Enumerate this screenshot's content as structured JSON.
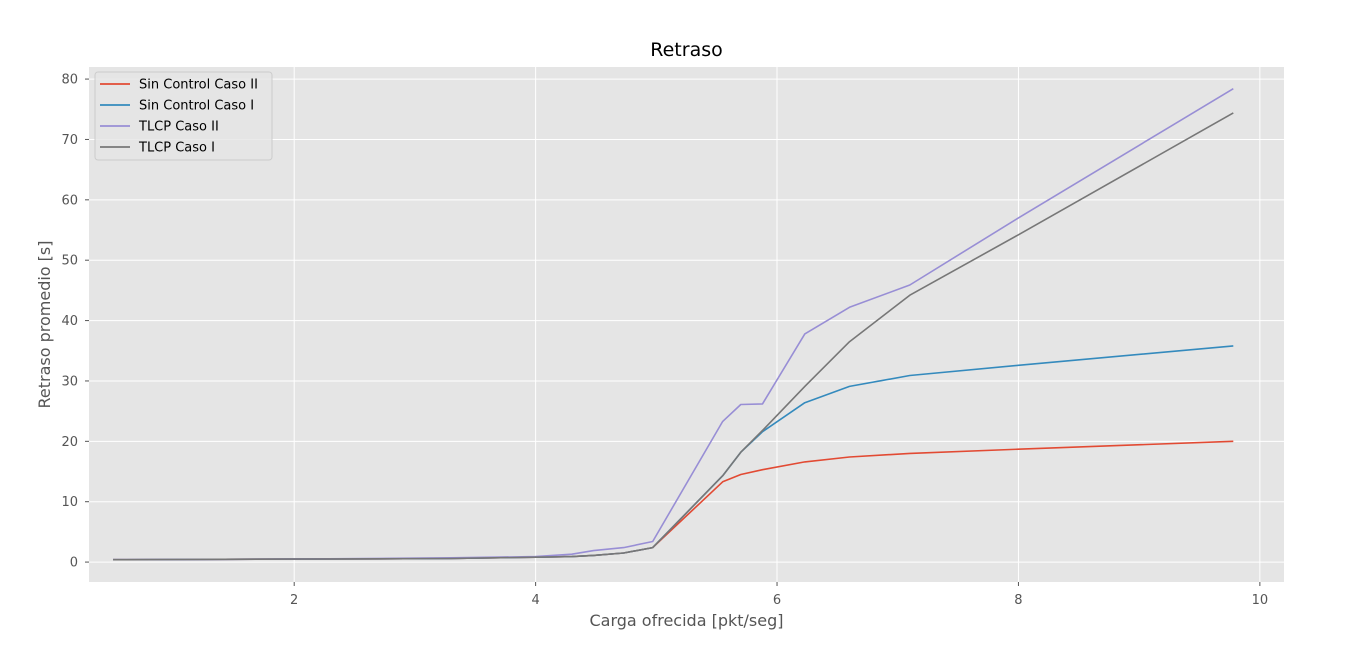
{
  "chart_data": {
    "type": "line",
    "title": "Retraso",
    "xlabel": "Carga ofrecida [pkt/seg]",
    "ylabel": "Retraso promedio [s]",
    "xlim": [
      0.3,
      10.2
    ],
    "ylim": [
      -3.3,
      82
    ],
    "xticks": [
      2,
      4,
      6,
      8,
      10
    ],
    "yticks": [
      0,
      10,
      20,
      30,
      40,
      50,
      60,
      70,
      80
    ],
    "grid": true,
    "legend_position": "top-left",
    "series": [
      {
        "name": "Sin Control Caso II",
        "color": "#E24A33",
        "x": [
          0.5,
          2.0,
          3.3,
          4.0,
          4.3,
          4.48,
          4.73,
          4.97,
          5.55,
          5.7,
          5.88,
          6.23,
          6.6,
          7.1,
          8.0,
          9.78
        ],
        "y": [
          0.4,
          0.5,
          0.6,
          0.8,
          0.9,
          1.1,
          1.5,
          2.4,
          13.3,
          14.5,
          15.3,
          16.6,
          17.4,
          18.0,
          18.7,
          20.0
        ]
      },
      {
        "name": "Sin Control Caso I",
        "color": "#348ABD",
        "x": [
          0.5,
          2.0,
          3.3,
          4.0,
          4.3,
          4.48,
          4.73,
          4.97,
          5.55,
          5.7,
          5.88,
          6.23,
          6.6,
          7.1,
          8.0,
          9.78
        ],
        "y": [
          0.4,
          0.5,
          0.6,
          0.8,
          0.9,
          1.1,
          1.5,
          2.4,
          14.3,
          18.2,
          21.6,
          26.4,
          29.1,
          30.9,
          32.6,
          35.8
        ]
      },
      {
        "name": "TLCP Caso II",
        "color": "#988ED5",
        "x": [
          0.5,
          2.0,
          3.3,
          4.0,
          4.3,
          4.48,
          4.73,
          4.97,
          5.55,
          5.7,
          5.88,
          6.23,
          6.6,
          7.1,
          8.0,
          9.78
        ],
        "y": [
          0.4,
          0.5,
          0.7,
          0.9,
          1.3,
          1.9,
          2.4,
          3.4,
          23.3,
          26.1,
          26.2,
          37.8,
          42.2,
          45.9,
          57.0,
          78.4
        ]
      },
      {
        "name": "TLCP Caso I",
        "color": "#777777",
        "x": [
          0.5,
          2.0,
          3.3,
          4.0,
          4.3,
          4.48,
          4.73,
          4.97,
          5.55,
          5.7,
          5.88,
          6.23,
          6.6,
          7.1,
          8.0,
          9.78
        ],
        "y": [
          0.4,
          0.5,
          0.6,
          0.8,
          0.9,
          1.1,
          1.5,
          2.4,
          14.3,
          18.2,
          21.8,
          29.1,
          36.5,
          44.2,
          54.2,
          74.4
        ]
      }
    ]
  }
}
